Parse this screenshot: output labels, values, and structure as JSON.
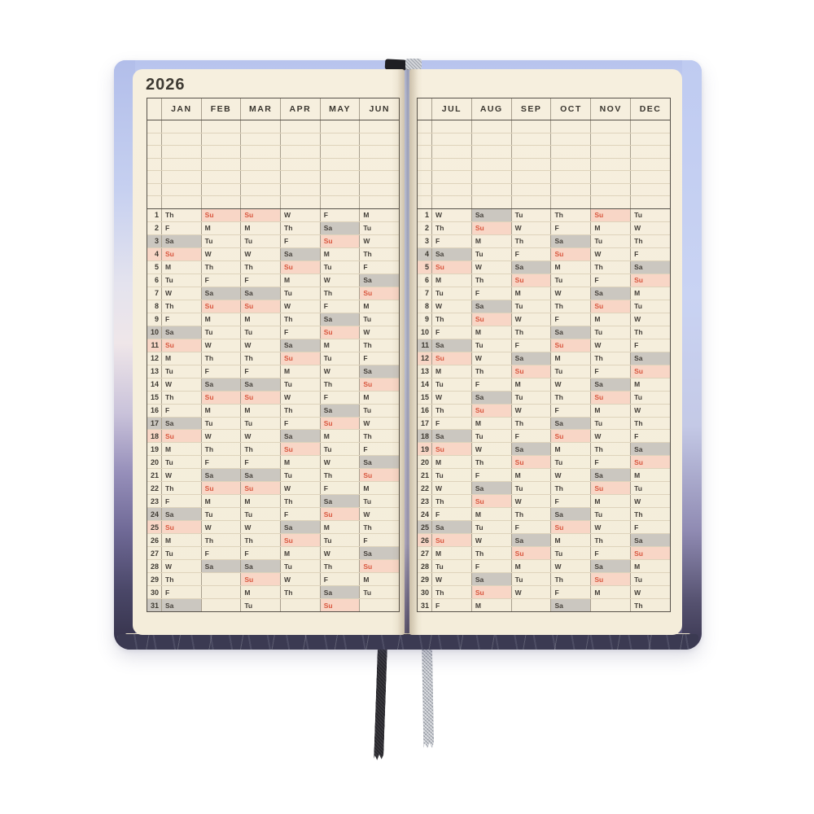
{
  "year": "2026",
  "day_numbers": [
    1,
    2,
    3,
    4,
    5,
    6,
    7,
    8,
    9,
    10,
    11,
    12,
    13,
    14,
    15,
    16,
    17,
    18,
    19,
    20,
    21,
    22,
    23,
    24,
    25,
    26,
    27,
    28,
    29,
    30,
    31
  ],
  "pages": [
    {
      "id": "left",
      "months": [
        "JAN",
        "FEB",
        "MAR",
        "APR",
        "MAY",
        "JUN"
      ],
      "rows": [
        [
          "Th",
          "Su",
          "Su",
          "W",
          "F",
          "M"
        ],
        [
          "F",
          "M",
          "M",
          "Th",
          "Sa",
          "Tu"
        ],
        [
          "Sa",
          "Tu",
          "Tu",
          "F",
          "Su",
          "W"
        ],
        [
          "Su",
          "W",
          "W",
          "Sa",
          "M",
          "Th"
        ],
        [
          "M",
          "Th",
          "Th",
          "Su",
          "Tu",
          "F"
        ],
        [
          "Tu",
          "F",
          "F",
          "M",
          "W",
          "Sa"
        ],
        [
          "W",
          "Sa",
          "Sa",
          "Tu",
          "Th",
          "Su"
        ],
        [
          "Th",
          "Su",
          "Su",
          "W",
          "F",
          "M"
        ],
        [
          "F",
          "M",
          "M",
          "Th",
          "Sa",
          "Tu"
        ],
        [
          "Sa",
          "Tu",
          "Tu",
          "F",
          "Su",
          "W"
        ],
        [
          "Su",
          "W",
          "W",
          "Sa",
          "M",
          "Th"
        ],
        [
          "M",
          "Th",
          "Th",
          "Su",
          "Tu",
          "F"
        ],
        [
          "Tu",
          "F",
          "F",
          "M",
          "W",
          "Sa"
        ],
        [
          "W",
          "Sa",
          "Sa",
          "Tu",
          "Th",
          "Su"
        ],
        [
          "Th",
          "Su",
          "Su",
          "W",
          "F",
          "M"
        ],
        [
          "F",
          "M",
          "M",
          "Th",
          "Sa",
          "Tu"
        ],
        [
          "Sa",
          "Tu",
          "Tu",
          "F",
          "Su",
          "W"
        ],
        [
          "Su",
          "W",
          "W",
          "Sa",
          "M",
          "Th"
        ],
        [
          "M",
          "Th",
          "Th",
          "Su",
          "Tu",
          "F"
        ],
        [
          "Tu",
          "F",
          "F",
          "M",
          "W",
          "Sa"
        ],
        [
          "W",
          "Sa",
          "Sa",
          "Tu",
          "Th",
          "Su"
        ],
        [
          "Th",
          "Su",
          "Su",
          "W",
          "F",
          "M"
        ],
        [
          "F",
          "M",
          "M",
          "Th",
          "Sa",
          "Tu"
        ],
        [
          "Sa",
          "Tu",
          "Tu",
          "F",
          "Su",
          "W"
        ],
        [
          "Su",
          "W",
          "W",
          "Sa",
          "M",
          "Th"
        ],
        [
          "M",
          "Th",
          "Th",
          "Su",
          "Tu",
          "F"
        ],
        [
          "Tu",
          "F",
          "F",
          "M",
          "W",
          "Sa"
        ],
        [
          "W",
          "Sa",
          "Sa",
          "Tu",
          "Th",
          "Su"
        ],
        [
          "Th",
          "",
          "Su",
          "W",
          "F",
          "M"
        ],
        [
          "F",
          "",
          "M",
          "Th",
          "Sa",
          "Tu"
        ],
        [
          "Sa",
          "",
          "Tu",
          "",
          "Su",
          ""
        ]
      ]
    },
    {
      "id": "right",
      "months": [
        "JUL",
        "AUG",
        "SEP",
        "OCT",
        "NOV",
        "DEC"
      ],
      "rows": [
        [
          "W",
          "Sa",
          "Tu",
          "Th",
          "Su",
          "Tu"
        ],
        [
          "Th",
          "Su",
          "W",
          "F",
          "M",
          "W"
        ],
        [
          "F",
          "M",
          "Th",
          "Sa",
          "Tu",
          "Th"
        ],
        [
          "Sa",
          "Tu",
          "F",
          "Su",
          "W",
          "F"
        ],
        [
          "Su",
          "W",
          "Sa",
          "M",
          "Th",
          "Sa"
        ],
        [
          "M",
          "Th",
          "Su",
          "Tu",
          "F",
          "Su"
        ],
        [
          "Tu",
          "F",
          "M",
          "W",
          "Sa",
          "M"
        ],
        [
          "W",
          "Sa",
          "Tu",
          "Th",
          "Su",
          "Tu"
        ],
        [
          "Th",
          "Su",
          "W",
          "F",
          "M",
          "W"
        ],
        [
          "F",
          "M",
          "Th",
          "Sa",
          "Tu",
          "Th"
        ],
        [
          "Sa",
          "Tu",
          "F",
          "Su",
          "W",
          "F"
        ],
        [
          "Su",
          "W",
          "Sa",
          "M",
          "Th",
          "Sa"
        ],
        [
          "M",
          "Th",
          "Su",
          "Tu",
          "F",
          "Su"
        ],
        [
          "Tu",
          "F",
          "M",
          "W",
          "Sa",
          "M"
        ],
        [
          "W",
          "Sa",
          "Tu",
          "Th",
          "Su",
          "Tu"
        ],
        [
          "Th",
          "Su",
          "W",
          "F",
          "M",
          "W"
        ],
        [
          "F",
          "M",
          "Th",
          "Sa",
          "Tu",
          "Th"
        ],
        [
          "Sa",
          "Tu",
          "F",
          "Su",
          "W",
          "F"
        ],
        [
          "Su",
          "W",
          "Sa",
          "M",
          "Th",
          "Sa"
        ],
        [
          "M",
          "Th",
          "Su",
          "Tu",
          "F",
          "Su"
        ],
        [
          "Tu",
          "F",
          "M",
          "W",
          "Sa",
          "M"
        ],
        [
          "W",
          "Sa",
          "Tu",
          "Th",
          "Su",
          "Tu"
        ],
        [
          "Th",
          "Su",
          "W",
          "F",
          "M",
          "W"
        ],
        [
          "F",
          "M",
          "Th",
          "Sa",
          "Tu",
          "Th"
        ],
        [
          "Sa",
          "Tu",
          "F",
          "Su",
          "W",
          "F"
        ],
        [
          "Su",
          "W",
          "Sa",
          "M",
          "Th",
          "Sa"
        ],
        [
          "M",
          "Th",
          "Su",
          "Tu",
          "F",
          "Su"
        ],
        [
          "Tu",
          "F",
          "M",
          "W",
          "Sa",
          "M"
        ],
        [
          "W",
          "Sa",
          "Tu",
          "Th",
          "Su",
          "Tu"
        ],
        [
          "Th",
          "Su",
          "W",
          "F",
          "M",
          "W"
        ],
        [
          "F",
          "M",
          "",
          "Sa",
          "",
          "Th"
        ]
      ]
    }
  ],
  "notes_rows_per_page": 7,
  "colors": {
    "page_cream": "#f5eedd",
    "sunday_bg": "#f8d6c6",
    "sunday_text": "#d9573f",
    "saturday_bg": "#cbc7c0",
    "cover_blue": "#b7c3ed",
    "cover_purple_dark": "#34324b",
    "bottom_edge_navy": "#3b3a52",
    "ribbon_black": "#26252a",
    "ribbon_gray": "#b4b8c0"
  },
  "bookmarks": [
    {
      "label": "black-ribbon",
      "color": "#26252a"
    },
    {
      "label": "gray-ribbon",
      "color": "#b4b8c0"
    }
  ]
}
